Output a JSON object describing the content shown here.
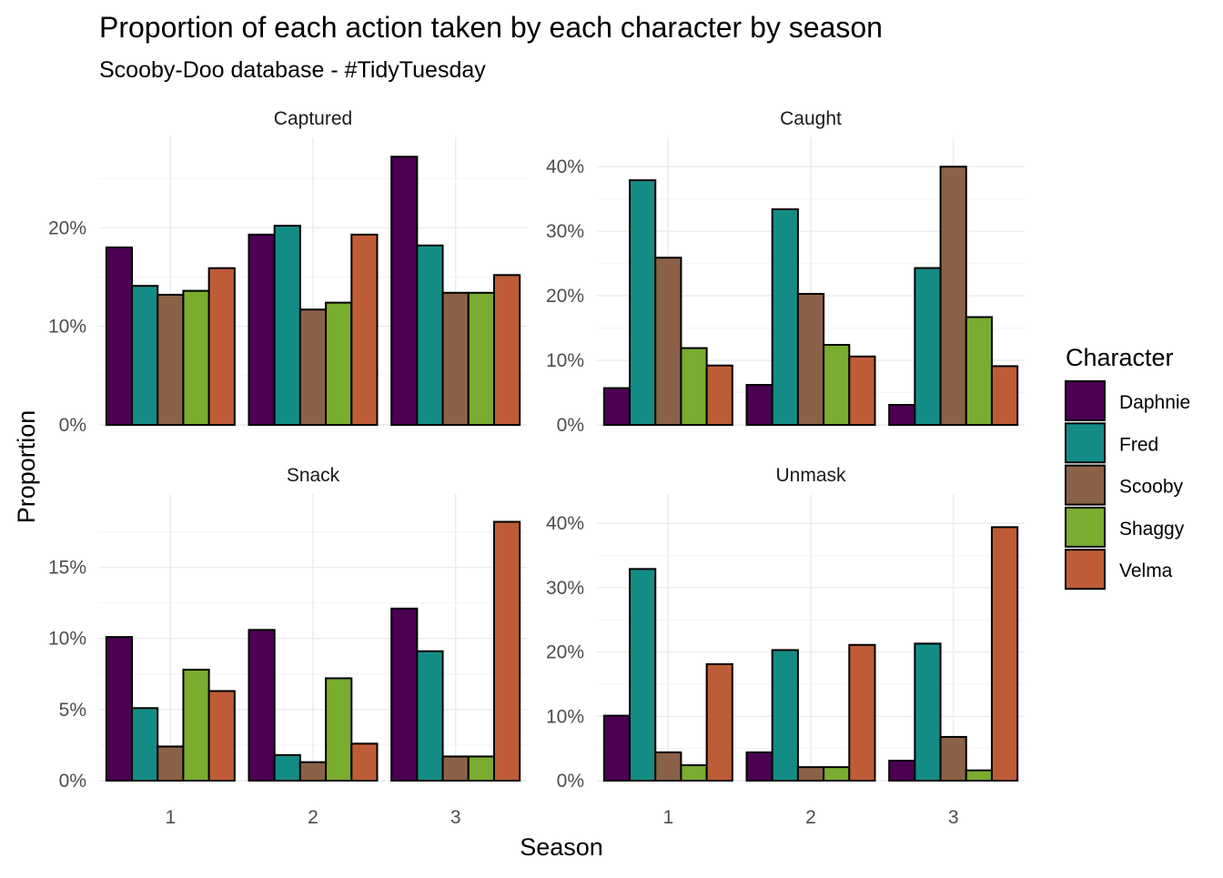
{
  "chart_data": {
    "type": "bar",
    "title": "Proportion of each action taken by each character by season",
    "subtitle": "Scooby-Doo database - #TidyTuesday",
    "xlabel": "Season",
    "ylabel": "Proportion",
    "categories": [
      "1",
      "2",
      "3"
    ],
    "legend": {
      "title": "Character",
      "position": "right",
      "entries": [
        {
          "name": "Daphnie",
          "color": "#4b0052"
        },
        {
          "name": "Fred",
          "color": "#148c86"
        },
        {
          "name": "Scooby",
          "color": "#8b6247"
        },
        {
          "name": "Shaggy",
          "color": "#7aac2f"
        },
        {
          "name": "Velma",
          "color": "#bf5c38"
        }
      ]
    },
    "grid": true,
    "panels": [
      {
        "name": "Captured",
        "ylim": [
          0,
          0.25
        ],
        "ytick_values": [
          0,
          0.1,
          0.2
        ],
        "ytick_labels": [
          "0%",
          "10%",
          "20%"
        ],
        "series": [
          {
            "name": "Daphnie",
            "values": [
              0.18,
              0.193,
              0.272
            ]
          },
          {
            "name": "Fred",
            "values": [
              0.141,
              0.202,
              0.182
            ]
          },
          {
            "name": "Scooby",
            "values": [
              0.132,
              0.117,
              0.134
            ]
          },
          {
            "name": "Shaggy",
            "values": [
              0.136,
              0.124,
              0.134
            ]
          },
          {
            "name": "Velma",
            "values": [
              0.159,
              0.193,
              0.152
            ]
          }
        ]
      },
      {
        "name": "Caught",
        "ylim": [
          0,
          0.4
        ],
        "ytick_values": [
          0,
          0.1,
          0.2,
          0.3,
          0.4
        ],
        "ytick_labels": [
          "0%",
          "10%",
          "20%",
          "30%",
          "40%"
        ],
        "series": [
          {
            "name": "Daphnie",
            "values": [
              0.057,
              0.062,
              0.031
            ]
          },
          {
            "name": "Fred",
            "values": [
              0.379,
              0.334,
              0.243
            ]
          },
          {
            "name": "Scooby",
            "values": [
              0.259,
              0.203,
              0.4
            ]
          },
          {
            "name": "Shaggy",
            "values": [
              0.119,
              0.124,
              0.167
            ]
          },
          {
            "name": "Velma",
            "values": [
              0.092,
              0.106,
              0.091
            ]
          }
        ]
      },
      {
        "name": "Snack",
        "ylim": [
          0,
          0.18
        ],
        "ytick_values": [
          0,
          0.05,
          0.1,
          0.15
        ],
        "ytick_labels": [
          "0%",
          "5%",
          "10%",
          "15%"
        ],
        "series": [
          {
            "name": "Daphnie",
            "values": [
              0.101,
              0.106,
              0.121
            ]
          },
          {
            "name": "Fred",
            "values": [
              0.051,
              0.018,
              0.091
            ]
          },
          {
            "name": "Scooby",
            "values": [
              0.024,
              0.013,
              0.017
            ]
          },
          {
            "name": "Shaggy",
            "values": [
              0.078,
              0.072,
              0.017
            ]
          },
          {
            "name": "Velma",
            "values": [
              0.063,
              0.026,
              0.182
            ]
          }
        ]
      },
      {
        "name": "Unmask",
        "ylim": [
          0,
          0.4
        ],
        "ytick_values": [
          0,
          0.1,
          0.2,
          0.3,
          0.4
        ],
        "ytick_labels": [
          "0%",
          "10%",
          "20%",
          "30%",
          "40%"
        ],
        "series": [
          {
            "name": "Daphnie",
            "values": [
              0.101,
              0.044,
              0.031
            ]
          },
          {
            "name": "Fred",
            "values": [
              0.329,
              0.203,
              0.213
            ]
          },
          {
            "name": "Scooby",
            "values": [
              0.044,
              0.021,
              0.068
            ]
          },
          {
            "name": "Shaggy",
            "values": [
              0.024,
              0.021,
              0.016
            ]
          },
          {
            "name": "Velma",
            "values": [
              0.181,
              0.211,
              0.394
            ]
          }
        ]
      }
    ]
  }
}
